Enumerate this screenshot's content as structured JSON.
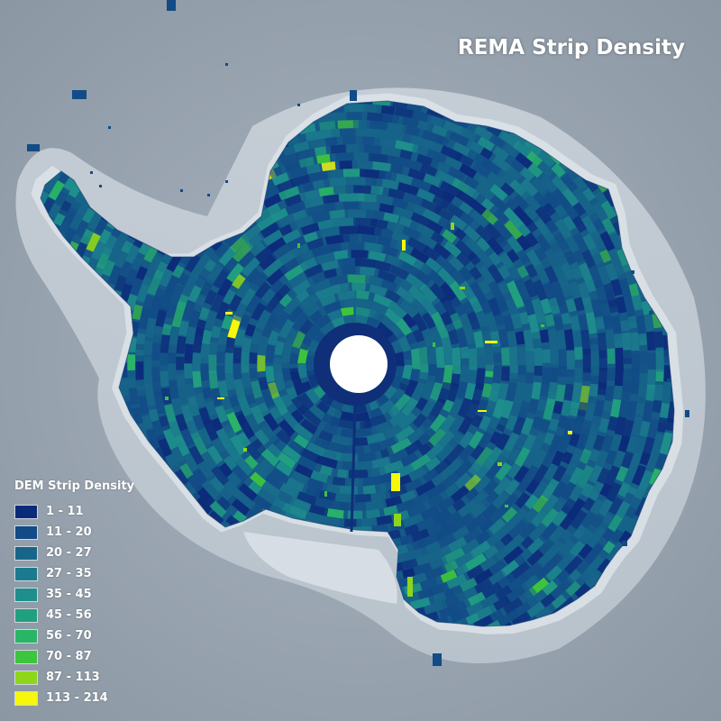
{
  "title": "REMA Strip Density",
  "legend": {
    "title": "DEM Strip Density",
    "items": [
      {
        "label": "1 - 11",
        "color": "#0c2a7a"
      },
      {
        "label": "11 - 20",
        "color": "#124b86"
      },
      {
        "label": "20 - 27",
        "color": "#176589"
      },
      {
        "label": "27 - 35",
        "color": "#1b7a8d"
      },
      {
        "label": "35 - 45",
        "color": "#1e8f8c"
      },
      {
        "label": "45 - 56",
        "color": "#21a07f"
      },
      {
        "label": "56 - 70",
        "color": "#29b566"
      },
      {
        "label": "70 - 87",
        "color": "#3ec43d"
      },
      {
        "label": "87 - 113",
        "color": "#8ed61a"
      },
      {
        "label": "113 - 214",
        "color": "#f7f70a"
      }
    ]
  }
}
